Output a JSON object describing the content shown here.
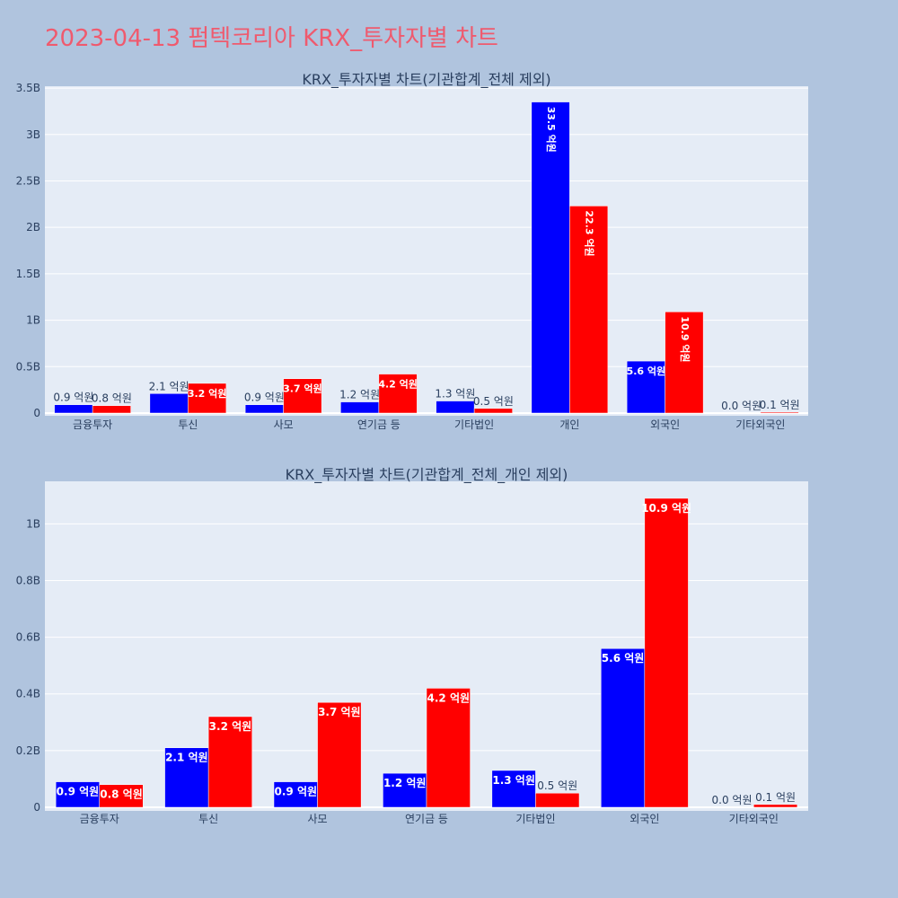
{
  "page": {
    "title": "2023-04-13 펌텍코리아 KRX_투자자별 차트"
  },
  "chart_data": [
    {
      "type": "bar",
      "title": "KRX_투자자별 차트(기관합계_전체 제외)",
      "categories": [
        "금융투자",
        "투신",
        "사모",
        "연기금 등",
        "기타법인",
        "개인",
        "외국인",
        "기타외국인"
      ],
      "series": [
        {
          "color": "#0000ff",
          "values": [
            0.09,
            0.21,
            0.09,
            0.12,
            0.13,
            3.35,
            0.56,
            0.0
          ],
          "labels": [
            "0.9 억원",
            "2.1 억원",
            "0.9 억원",
            "1.2 억원",
            "1.3 억원",
            "33.5 억원",
            "5.6 억원",
            "0.0 억원"
          ]
        },
        {
          "color": "#ff0000",
          "values": [
            0.08,
            0.32,
            0.37,
            0.42,
            0.05,
            2.23,
            1.09,
            0.01
          ],
          "labels": [
            "0.8 억원",
            "3.2 억원",
            "3.7 억원",
            "4.2 억원",
            "0.5 억원",
            "22.3 억원",
            "10.9 억원",
            "0.1 억원"
          ]
        }
      ],
      "yticks": [
        {
          "value": 0,
          "label": "0"
        },
        {
          "value": 0.5,
          "label": "0.5B"
        },
        {
          "value": 1,
          "label": "1B"
        },
        {
          "value": 1.5,
          "label": "1.5B"
        },
        {
          "value": 2,
          "label": "2B"
        },
        {
          "value": 2.5,
          "label": "2.5B"
        },
        {
          "value": 3,
          "label": "3B"
        },
        {
          "value": 3.5,
          "label": "3.5B"
        }
      ],
      "ylim": [
        0,
        3.52
      ],
      "grid": true
    },
    {
      "type": "bar",
      "title": "KRX_투자자별 차트(기관합계_전체_개인 제외)",
      "categories": [
        "금융투자",
        "투신",
        "사모",
        "연기금 등",
        "기타법인",
        "외국인",
        "기타외국인"
      ],
      "series": [
        {
          "color": "#0000ff",
          "values": [
            0.09,
            0.21,
            0.09,
            0.12,
            0.13,
            0.56,
            0.0
          ],
          "labels": [
            "0.9 억원",
            "2.1 억원",
            "0.9 억원",
            "1.2 억원",
            "1.3 억원",
            "5.6 억원",
            "0.0 억원"
          ]
        },
        {
          "color": "#ff0000",
          "values": [
            0.08,
            0.32,
            0.37,
            0.42,
            0.05,
            1.09,
            0.01
          ],
          "labels": [
            "0.8 억원",
            "3.2 억원",
            "3.7 억원",
            "4.2 억원",
            "0.5 억원",
            "10.9 억원",
            "0.1 억원"
          ]
        }
      ],
      "yticks": [
        {
          "value": 0,
          "label": "0"
        },
        {
          "value": 0.2,
          "label": "0.2B"
        },
        {
          "value": 0.4,
          "label": "0.4B"
        },
        {
          "value": 0.6,
          "label": "0.6B"
        },
        {
          "value": 0.8,
          "label": "0.8B"
        },
        {
          "value": 1,
          "label": "1B"
        }
      ],
      "ylim": [
        0,
        1.15
      ],
      "grid": true
    }
  ]
}
